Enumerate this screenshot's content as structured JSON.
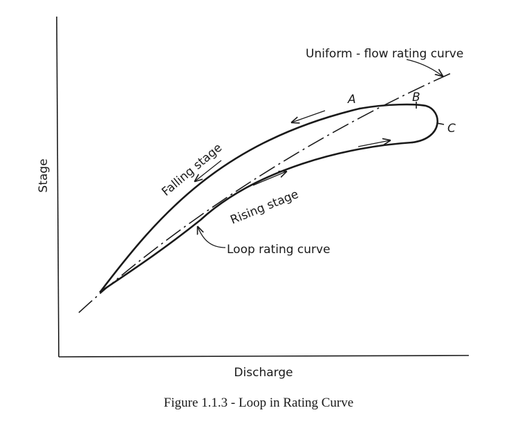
{
  "axes": {
    "y_label": "Stage",
    "x_label": "Discharge"
  },
  "labels": {
    "uniform_flow": "Uniform - flow rating curve",
    "falling_stage": "Falling stage",
    "rising_stage": "Rising stage",
    "loop_rating": "Loop rating curve",
    "point_a": "A",
    "point_b": "B",
    "point_c": "C"
  },
  "caption": "Figure 1.1.3 - Loop in Rating Curve"
}
